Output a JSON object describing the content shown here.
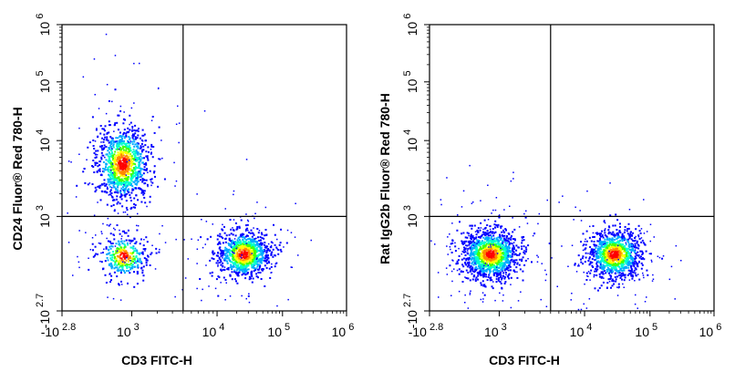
{
  "chart_data": [
    {
      "type": "scatter",
      "subtype": "flow-cytometry-density",
      "xlabel": "CD3 FITC-H",
      "ylabel": "CD24  Fluor® Red 780-H",
      "x_ticks": [
        {
          "base": "-10",
          "exp": "2.8"
        },
        {
          "base": "10",
          "exp": "3"
        },
        {
          "base": "10",
          "exp": "4"
        },
        {
          "base": "10",
          "exp": "5"
        },
        {
          "base": "10",
          "exp": "6"
        }
      ],
      "y_ticks": [
        {
          "base": "-10",
          "exp": "2.7"
        },
        {
          "base": "10",
          "exp": "3"
        },
        {
          "base": "10",
          "exp": "4"
        },
        {
          "base": "10",
          "exp": "5"
        },
        {
          "base": "10",
          "exp": "6"
        }
      ],
      "quadrant_gate": {
        "x": 4000,
        "y": 1000
      },
      "populations": [
        {
          "label": "CD3- CD24+",
          "x_center": 550,
          "y_center": 5000,
          "relative_size": 0.45
        },
        {
          "label": "CD3- CD24-",
          "x_center": 600,
          "y_center": 350,
          "relative_size": 0.15
        },
        {
          "label": "CD3+ CD24-",
          "x_center": 25000,
          "y_center": 380,
          "relative_size": 0.4
        }
      ]
    },
    {
      "type": "scatter",
      "subtype": "flow-cytometry-density",
      "xlabel": "CD3 FITC-H",
      "ylabel": "Rat IgG2b  Fluor® Red 780-H",
      "x_ticks": [
        {
          "base": "-10",
          "exp": "2.8"
        },
        {
          "base": "10",
          "exp": "3"
        },
        {
          "base": "10",
          "exp": "4"
        },
        {
          "base": "10",
          "exp": "5"
        },
        {
          "base": "10",
          "exp": "6"
        }
      ],
      "y_ticks": [
        {
          "base": "-10",
          "exp": "2.7"
        },
        {
          "base": "10",
          "exp": "3"
        },
        {
          "base": "10",
          "exp": "4"
        },
        {
          "base": "10",
          "exp": "5"
        },
        {
          "base": "10",
          "exp": "6"
        }
      ],
      "quadrant_gate": {
        "x": 4000,
        "y": 1000
      },
      "populations": [
        {
          "label": "CD3- isotype",
          "x_center": 550,
          "y_center": 380,
          "relative_size": 0.55
        },
        {
          "label": "CD3+ isotype",
          "x_center": 28000,
          "y_center": 380,
          "relative_size": 0.45
        }
      ]
    }
  ],
  "colors": {
    "density_scale": [
      "#0000ff",
      "#00aaff",
      "#00ffcc",
      "#44ff00",
      "#ffff00",
      "#ff8800",
      "#ff0000"
    ],
    "axis": "#000000",
    "background": "#ffffff"
  }
}
